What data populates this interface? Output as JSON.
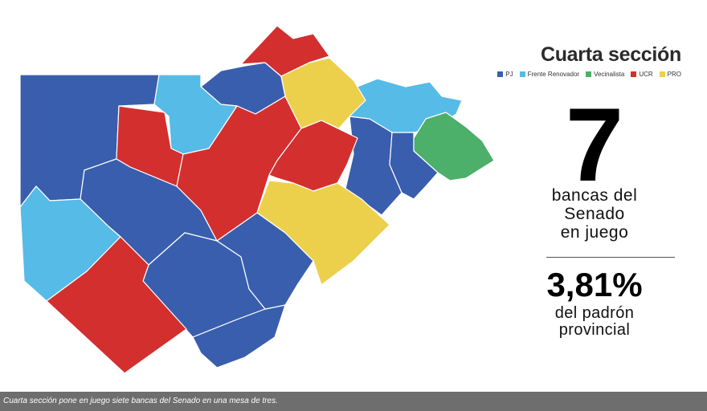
{
  "header": {
    "title": "Cuarta sección"
  },
  "legend": [
    {
      "label": "PJ",
      "color": "#3a5eae"
    },
    {
      "label": "Frente Renovador",
      "color": "#56bbe6"
    },
    {
      "label": "Vecinalista",
      "color": "#4caf6a"
    },
    {
      "label": "UCR",
      "color": "#d32f2f"
    },
    {
      "label": "PRO",
      "color": "#ecd04c"
    }
  ],
  "stats": {
    "seats_number": "7",
    "seats_line1": "bancas del",
    "seats_line2": "Senado",
    "seats_line3": "en juego",
    "percent": "3,81%",
    "percent_line1": "del padrón",
    "percent_line2": "provincial"
  },
  "caption": "Cuarta sección pone en juego siete bancas del Senado en una mesa de tres."
}
